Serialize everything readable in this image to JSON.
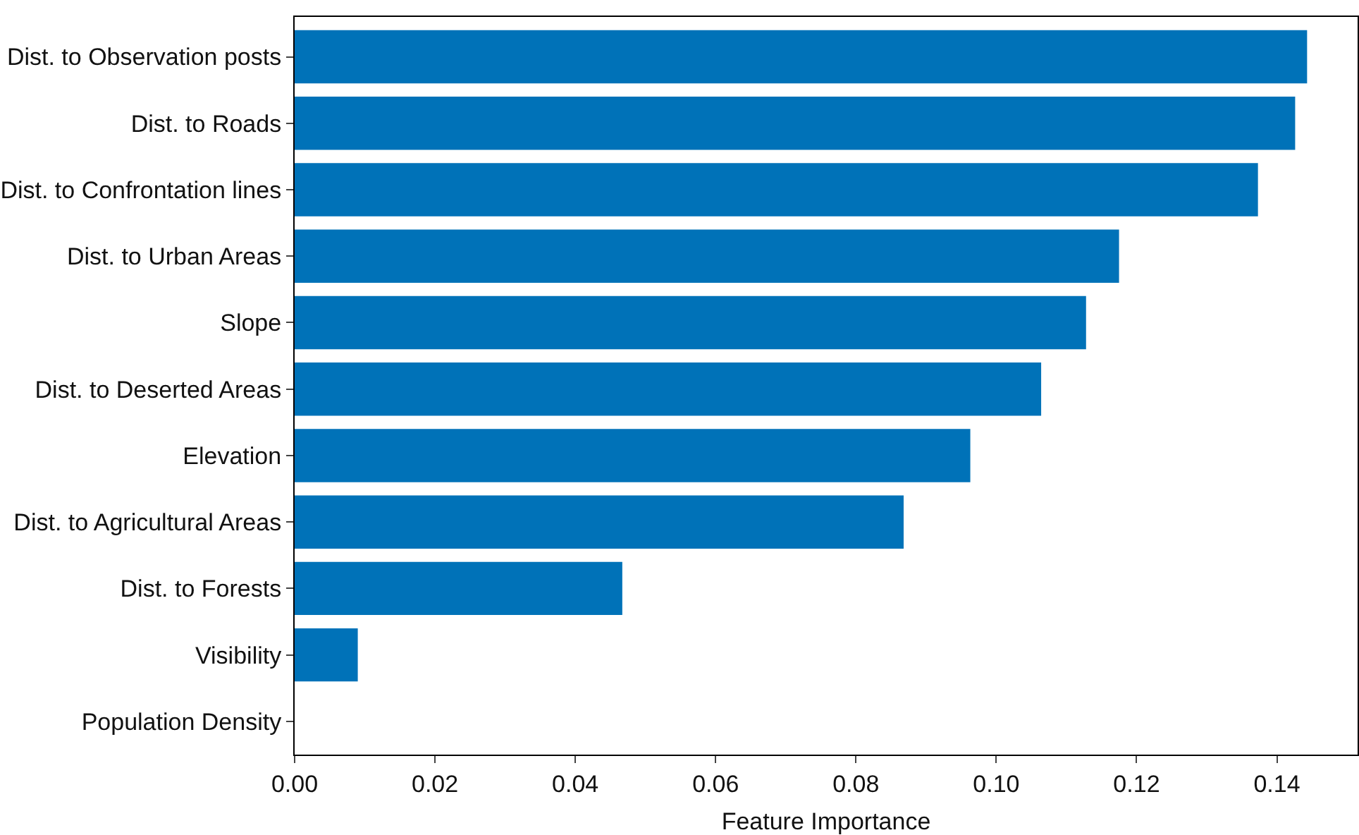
{
  "chart_data": {
    "type": "bar",
    "orientation": "horizontal",
    "xlabel": "Feature Importance",
    "categories": [
      "Dist. to Observation posts",
      "Dist. to Roads",
      "Dist. to Confrontation lines",
      "Dist. to Urban Areas",
      "Slope",
      "Dist. to Deserted Areas",
      "Elevation",
      "Dist. to Agricultural Areas",
      "Dist. to Forests",
      "Visibility",
      "Population Density"
    ],
    "values": [
      0.1443,
      0.1426,
      0.1373,
      0.1175,
      0.1128,
      0.1064,
      0.0963,
      0.0868,
      0.0467,
      0.009,
      0.0
    ],
    "color": "#0072b8",
    "xlim": [
      0,
      0.1515
    ],
    "xticks": [
      {
        "value": 0,
        "label": "0.00"
      },
      {
        "value": 0.02,
        "label": "0.02"
      },
      {
        "value": 0.04,
        "label": "0.04"
      },
      {
        "value": 0.06,
        "label": "0.06"
      },
      {
        "value": 0.08,
        "label": "0.08"
      },
      {
        "value": 0.1,
        "label": "0.10"
      },
      {
        "value": 0.12,
        "label": "0.12"
      },
      {
        "value": 0.14,
        "label": "0.14"
      }
    ]
  }
}
